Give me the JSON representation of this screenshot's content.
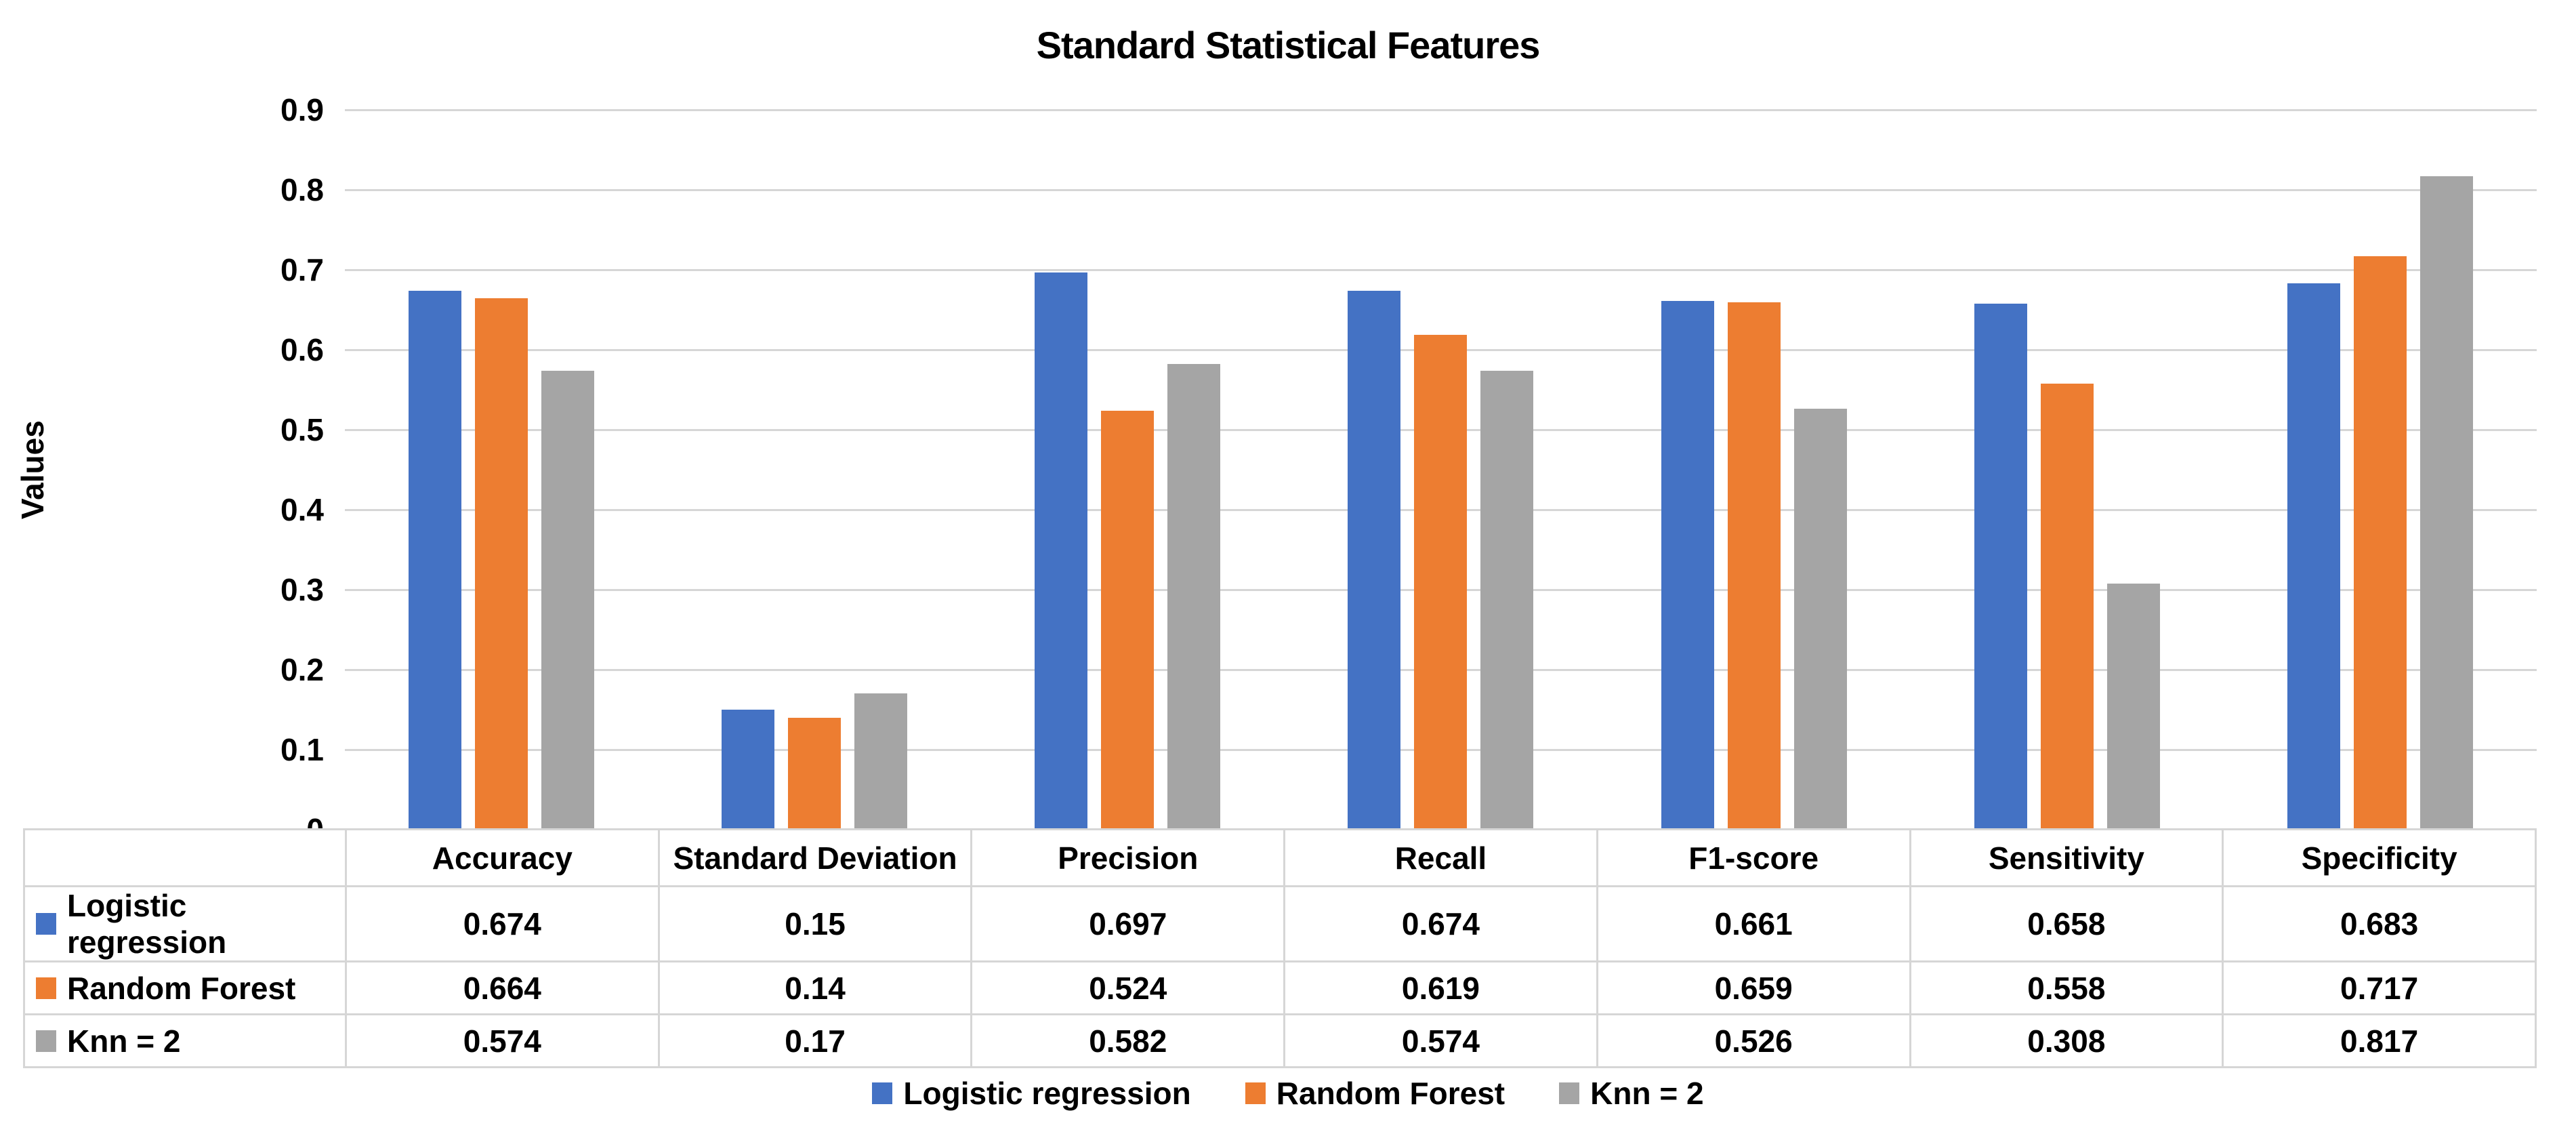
{
  "colors": {
    "gridline": "#d6d6d6",
    "table_border": "#d6d6d6",
    "blue": "#4472c4",
    "orange": "#ed7d31",
    "gray": "#a5a5a5"
  },
  "chart_data": {
    "type": "bar",
    "title": "Standard Statistical Features",
    "xlabel": "",
    "ylabel": "Values",
    "ylim": [
      0,
      0.9
    ],
    "ytick_step": 0.1,
    "yticks_top_to_bottom": [
      "0.9",
      "0.8",
      "0.7",
      "0.6",
      "0.5",
      "0.4",
      "0.3",
      "0.2",
      "0.1",
      "0"
    ],
    "grid": true,
    "legend_position": "bottom",
    "data_table_shown": true,
    "categories": [
      "Accuracy",
      "Standard Deviation",
      "Precision",
      "Recall",
      "F1-score",
      "Sensitivity",
      "Specificity"
    ],
    "series": [
      {
        "name": "Logistic regression",
        "color": "#4472c4",
        "values": [
          0.674,
          0.15,
          0.697,
          0.674,
          0.661,
          0.658,
          0.683
        ]
      },
      {
        "name": "Random Forest",
        "color": "#ed7d31",
        "values": [
          0.664,
          0.14,
          0.524,
          0.619,
          0.659,
          0.558,
          0.717
        ]
      },
      {
        "name": "Knn = 2",
        "color": "#a5a5a5",
        "values": [
          0.574,
          0.17,
          0.582,
          0.574,
          0.526,
          0.308,
          0.817
        ]
      }
    ]
  }
}
